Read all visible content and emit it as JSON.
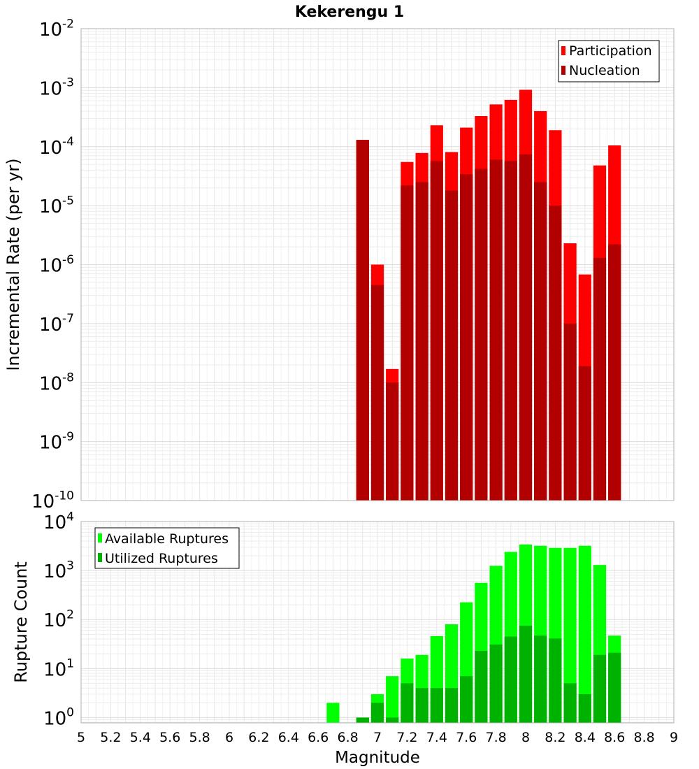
{
  "chart_data": [
    {
      "type": "bar",
      "title": "Kekerengu 1",
      "ylabel": "Incremental Rate (per yr)",
      "xlabel": "",
      "ylog": true,
      "ylim": [
        1e-10,
        0.01
      ],
      "xlim": [
        5,
        9
      ],
      "grid": true,
      "legend_position": "top-right",
      "bar_width": 0.1,
      "y_ticks": [
        {
          "base": "10",
          "exp": "-10"
        },
        {
          "base": "10",
          "exp": "-9"
        },
        {
          "base": "10",
          "exp": "-8"
        },
        {
          "base": "10",
          "exp": "-7"
        },
        {
          "base": "10",
          "exp": "-6"
        },
        {
          "base": "10",
          "exp": "-5"
        },
        {
          "base": "10",
          "exp": "-4"
        },
        {
          "base": "10",
          "exp": "-3"
        },
        {
          "base": "10",
          "exp": "-2"
        }
      ],
      "x": [
        6.9,
        7.0,
        7.1,
        7.2,
        7.3,
        7.4,
        7.5,
        7.6,
        7.7,
        7.8,
        7.9,
        8.0,
        8.1,
        8.2,
        8.3,
        8.4,
        8.5,
        8.6
      ],
      "series": [
        {
          "name": "Participation",
          "color": "#ff0000",
          "values": [
            0.00013,
            1e-06,
            1.7e-08,
            5.5e-05,
            7.8e-05,
            0.00023,
            8.1e-05,
            0.00021,
            0.00033,
            0.00052,
            0.00062,
            0.00092,
            0.0004,
            0.00019,
            2.3e-06,
            6.8e-07,
            4.8e-05,
            0.000105
          ]
        },
        {
          "name": "Nucleation",
          "color": "#b20000",
          "values": [
            0.00013,
            4.5e-07,
            1e-08,
            2.2e-05,
            2.5e-05,
            5.7e-05,
            1.8e-05,
            3.4e-05,
            4.2e-05,
            6e-05,
            5.7e-05,
            7.4e-05,
            2.5e-05,
            1e-05,
            1e-07,
            1.9e-08,
            1.3e-06,
            2.2e-06
          ]
        }
      ]
    },
    {
      "type": "bar",
      "title": "",
      "ylabel": "Rupture Count",
      "xlabel": "Magnitude",
      "ylog": true,
      "ylim": [
        0.78,
        10000
      ],
      "xlim": [
        5,
        9
      ],
      "grid": true,
      "legend_position": "top-left",
      "bar_width": 0.1,
      "y_ticks": [
        {
          "value": 1,
          "base": "10",
          "exp": "0"
        },
        {
          "value": 10,
          "base": "10",
          "exp": "1"
        },
        {
          "value": 100,
          "base": "10",
          "exp": "2"
        },
        {
          "value": 1000,
          "base": "10",
          "exp": "3"
        },
        {
          "value": 10000,
          "base": "10",
          "exp": "4"
        }
      ],
      "x_ticks": [
        "5",
        "5.2",
        "5.4",
        "5.6",
        "5.8",
        "6",
        "6.2",
        "6.4",
        "6.6",
        "6.8",
        "7",
        "7.2",
        "7.4",
        "7.6",
        "7.8",
        "8",
        "8.2",
        "8.4",
        "8.6",
        "8.8",
        "9"
      ],
      "x": [
        6.7,
        6.9,
        7.0,
        7.1,
        7.2,
        7.3,
        7.4,
        7.5,
        7.6,
        7.7,
        7.8,
        7.9,
        8.0,
        8.1,
        8.2,
        8.3,
        8.4,
        8.5,
        8.6
      ],
      "series": [
        {
          "name": "Available Ruptures",
          "color": "#00ff00",
          "values": [
            2,
            1,
            3,
            7,
            16,
            19,
            46,
            80,
            225,
            560,
            1250,
            2400,
            3400,
            3200,
            2900,
            2900,
            3200,
            1300,
            47
          ]
        },
        {
          "name": "Utilized Ruptures",
          "color": "#00b200",
          "values": [
            0,
            1,
            2,
            1,
            5,
            4,
            4,
            4,
            7,
            23,
            31,
            45,
            75,
            47,
            41,
            5,
            3,
            19,
            21
          ]
        }
      ]
    }
  ]
}
